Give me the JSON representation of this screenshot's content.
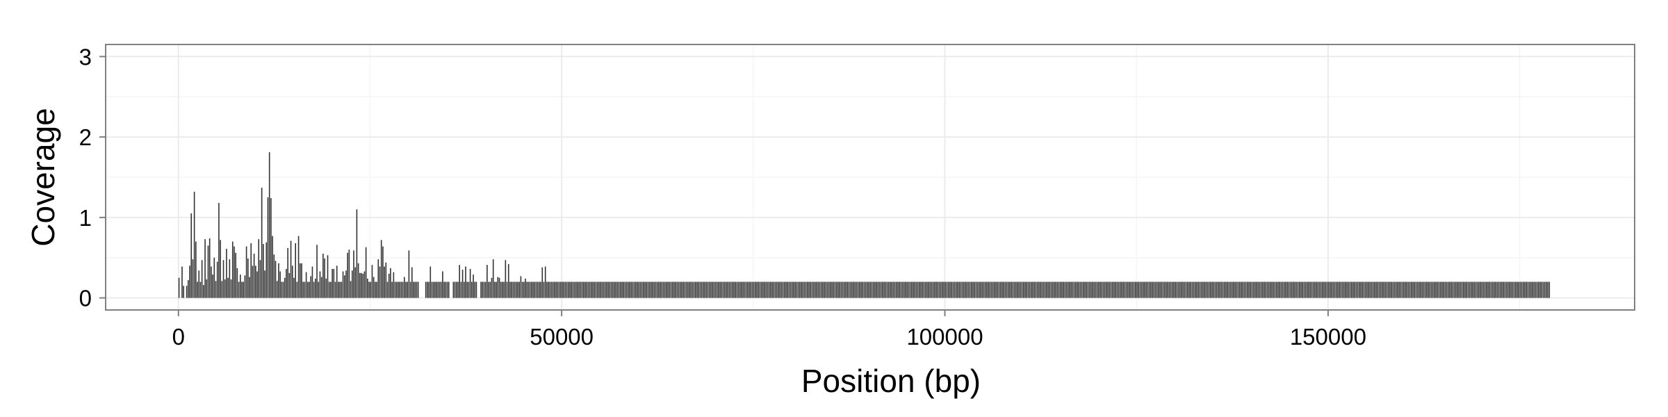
{
  "chart_data": {
    "type": "bar",
    "title": "",
    "xlabel": "Position (bp)",
    "ylabel": "Coverage",
    "xlim": [
      -9500,
      190000
    ],
    "ylim": [
      -0.15,
      3.15
    ],
    "x_ticks": [
      0,
      50000,
      100000,
      150000
    ],
    "x_tick_labels": [
      "0",
      "50000",
      "100000",
      "150000"
    ],
    "y_ticks": [
      0,
      1,
      2,
      3
    ],
    "y_tick_labels": [
      "0",
      "1",
      "2",
      "3"
    ],
    "grid": true,
    "legend": "none",
    "bar_color": "#333333",
    "panel_border_color": "#7f7f7f",
    "grid_color": "#ebebeb",
    "bin_width_bp": 200,
    "series": [
      {
        "bin_start_bp": 0,
        "values": [
          0.25,
          0,
          0.39,
          0.15,
          0,
          0.15,
          0.22,
          0.4,
          1.05,
          0.48,
          1.32,
          0.7,
          0.2,
          0.34,
          0.2,
          0.47,
          0.16,
          0.73,
          0.23,
          0.65,
          0.74,
          0.39,
          0.29,
          0.5,
          0.21,
          0.45,
          1.18,
          0.72,
          0.21,
          0.47,
          0.23,
          0.61,
          0.25,
          0.48,
          0.23,
          0.7,
          0.64,
          0.56,
          0.37,
          0.2,
          0.29,
          0.2,
          0.2,
          0.28,
          0.64,
          0.49,
          0.26,
          0.68,
          0.4,
          0.55,
          0.4,
          0.33,
          0.73,
          0.47,
          1.37,
          0.67,
          0.34,
          0.69,
          1.25,
          1.81,
          1.24,
          0.77,
          0.54,
          0.46,
          0.21,
          0.43,
          0.33,
          0.2,
          0.2,
          0.25,
          0.36,
          0.62,
          0.31,
          0.71,
          0.4,
          0.25,
          0.68,
          0.2,
          0.77,
          0.43,
          0.43,
          0.2,
          0.2,
          0.32,
          0.2,
          0.2,
          0.27,
          0.39,
          0.2,
          0.24,
          0.66,
          0.2,
          0.33,
          0.26,
          0.55,
          0.49,
          0.24,
          0.53,
          0.2,
          0.2,
          0.36,
          0.36,
          0.2,
          0.4,
          0.2,
          0.2,
          0.2,
          0.33,
          0.28,
          0.34,
          0.56,
          0.6,
          0.21,
          0.34,
          0.59,
          0.38,
          1.1,
          0.43,
          0.31,
          0.31,
          0.3,
          0.33,
          0.63,
          0.24,
          0.2,
          0.2,
          0.41,
          0.26,
          0.2,
          0.2,
          0.48,
          0.39,
          0.72,
          0.64,
          0.39,
          0.44,
          0.2,
          0.3,
          0.37,
          0.2,
          0.32,
          0.2,
          0.2,
          0.2,
          0.2,
          0.2,
          0.2,
          0.26,
          0.2,
          0.2,
          0.59,
          0.2,
          0.38,
          0.2,
          0.2,
          0.2,
          0.2,
          0,
          0,
          0,
          0,
          0.2,
          0.2,
          0.2,
          0.39,
          0.2,
          0.2,
          0.2,
          0.2,
          0.2,
          0.2,
          0.2,
          0.33,
          0.2,
          0.2,
          0.2,
          0.2,
          0,
          0,
          0.2,
          0.2,
          0.2,
          0.2,
          0.41,
          0.2,
          0.35,
          0.2,
          0.39,
          0.2,
          0.2,
          0.36,
          0.2,
          0.29,
          0.2,
          0.2,
          0,
          0,
          0.2,
          0.2,
          0.2,
          0.2,
          0.41,
          0.2,
          0.2,
          0.25,
          0.48,
          0.2,
          0.2,
          0.26,
          0.25,
          0.2,
          0.2,
          0.2,
          0.47,
          0.2,
          0.42,
          0.2,
          0.2,
          0.2,
          0.2,
          0.2,
          0.2,
          0.2,
          0.27,
          0.2,
          0.2,
          0.24,
          0.2,
          0.2,
          0.2,
          0.2,
          0.2,
          0.2,
          0.2,
          0.2,
          0.2,
          0.2,
          0.38,
          0.2,
          0.39,
          0.2,
          0.2,
          0.2,
          0.2,
          0.2,
          0.2,
          0.2,
          0.2,
          0.2,
          0.2,
          0.2,
          0.2,
          0.2,
          0.2,
          0.2,
          0.2,
          0.2,
          0.2,
          0.2,
          0.2,
          0.2,
          0.2,
          0.2,
          0.2,
          0.2,
          0.2,
          0.2,
          0.2,
          0.2,
          0.2,
          0.2,
          0.2,
          0.2,
          0.2,
          0.2,
          0.2,
          0.2,
          0.2,
          0.2,
          0.2,
          0.2,
          0.2,
          0.2,
          0.2,
          0.2,
          0.2,
          0.2,
          0.2,
          0.2,
          0.2,
          0.2,
          0.2,
          0.2,
          0.2,
          0.2,
          0.2,
          0.2,
          0.2,
          0.2,
          0.2,
          0.2,
          0.2,
          0.2,
          0.2,
          0.2,
          0.2,
          0.2,
          0.2,
          0.2,
          0.2,
          0.2,
          0.2,
          0.2,
          0.2,
          0.2,
          0.2,
          0.2,
          0.2,
          0.2,
          0.2,
          0.2,
          0.2,
          0.2,
          0.2,
          0.2,
          0.2,
          0.2,
          0.2,
          0.2,
          0.2,
          0.2,
          0.2,
          0.2,
          0.2,
          0.2,
          0.2,
          0.2,
          0.2,
          0.2,
          0.2,
          0.2,
          0.2,
          0.2,
          0.2,
          0.2,
          0.2,
          0.2,
          0.2,
          0.2,
          0.2,
          0.2,
          0.2,
          0.2,
          0.2,
          0.2,
          0.2,
          0.2,
          0.2,
          0.2,
          0.2,
          0.2,
          0.2,
          0.2,
          0.2,
          0.2,
          0.2,
          0.2,
          0.2,
          0.2,
          0.2,
          0.2,
          0.2,
          0.2,
          0.2,
          0.2,
          0.2,
          0.2,
          0.2,
          0.2,
          0.2,
          0.2,
          0.2,
          0.2,
          0.2,
          0.2,
          0.2,
          0.2,
          0.2,
          0.2,
          0.2,
          0.2,
          0.2,
          0.2,
          0.2,
          0.2,
          0.2,
          0.2,
          0.2,
          0.2,
          0.2,
          0.2,
          0.2,
          0.2,
          0.2,
          0.2,
          0.2,
          0.2,
          0.2,
          0.2,
          0.2,
          0.2,
          0.2,
          0.2,
          0.2,
          0.2,
          0.2,
          0.2,
          0.2,
          0.2,
          0.2,
          0.2,
          0.2,
          0.2,
          0.2,
          0.2,
          0.2,
          0.2,
          0.2,
          0.2,
          0.2,
          0.2,
          0.2,
          0.2,
          0.2,
          0.2,
          0.2,
          0.2,
          0.2,
          0.2,
          0.2,
          0.2,
          0.2,
          0.2,
          0.2,
          0.2,
          0.2,
          0.2,
          0.2,
          0.2,
          0.2,
          0.2,
          0.2,
          0.2,
          0.2,
          0.2,
          0.2,
          0.2,
          0.2,
          0.2,
          0.2,
          0.2,
          0.2,
          0.2,
          0.2,
          0.2,
          0.2,
          0.2,
          0.2,
          0.2,
          0.2,
          0.2,
          0.2,
          0.2,
          0.2,
          0.2,
          0.2,
          0.2,
          0.2,
          0.2,
          0.2,
          0.2,
          0.2,
          0.2,
          0.2,
          0.2,
          0.2,
          0.2,
          0.2,
          0.2,
          0.2,
          0.2,
          0.2,
          0.2,
          0.2,
          0.2,
          0.2,
          0.2,
          0.2,
          0.2,
          0.2,
          0.2,
          0.2,
          0.2,
          0.2,
          0.2,
          0.2,
          0.2,
          0.2,
          0.2,
          0.2,
          0.2,
          0.2,
          0.2,
          0.2,
          0.2,
          0.2,
          0.2,
          0.2,
          0.2,
          0.2,
          0.2,
          0.2,
          0.2,
          0.2,
          0.2,
          0.2,
          0.2,
          0.2,
          0.2,
          0.2,
          0.2,
          0.2,
          0.2,
          0.2,
          0.2,
          0.2,
          0.2,
          0.2,
          0.2,
          0.2,
          0.2,
          0.2,
          0.2,
          0.2,
          0.2,
          0.2,
          0.2,
          0.2,
          0.2,
          0.2,
          0.2,
          0.2,
          0.2,
          0.2,
          0.2,
          0.2,
          0.2,
          0.2,
          0.2,
          0.2,
          0.2,
          0.2,
          0.2,
          0.2,
          0.2,
          0.2,
          0.2,
          0.2,
          0.2,
          0.2,
          0.2,
          0.2,
          0.2,
          0.2,
          0.2,
          0.2,
          0.2,
          0.2,
          0.2,
          0.2,
          0.2,
          0.2,
          0.2,
          0.2,
          0.2,
          0.2,
          0.2,
          0.2,
          0.2,
          0.2,
          0.2,
          0.2,
          0.2,
          0.2,
          0.2,
          0.2,
          0.2,
          0.2,
          0.2,
          0.2,
          0.2,
          0.2,
          0.2,
          0.2,
          0.2,
          0.2,
          0.2,
          0.2,
          0.2,
          0.2,
          0.2,
          0.2,
          0.2,
          0.2,
          0.2,
          0.2,
          0.2,
          0.2,
          0.2,
          0.2,
          0.2,
          0.2,
          0.2,
          0.2,
          0.2,
          0.2,
          0.2,
          0.2,
          0.2,
          0.2,
          0.2,
          0.2,
          0.2,
          0.2,
          0.2,
          0.2,
          0.2,
          0.2,
          0.2,
          0.2,
          0.2,
          0.2,
          0.2,
          0.2,
          0.2,
          0.2,
          0.2,
          0.2,
          0.2,
          0.2,
          0.2,
          0.2,
          0.2,
          0.2,
          0.2,
          0.2,
          0.2,
          0.2,
          0.2,
          0.2,
          0.2,
          0.2,
          0.2,
          0.2,
          0.2,
          0.2,
          0.2,
          0.2,
          0.2,
          0.2,
          0.2,
          0.2,
          0.2,
          0.2,
          0.2,
          0.2,
          0.2,
          0.2,
          0.2,
          0.2,
          0.2,
          0.2,
          0.2,
          0.2,
          0.2,
          0.2,
          0.2,
          0.2,
          0.2,
          0.2,
          0.2,
          0.2,
          0.2,
          0.2,
          0.2,
          0.2,
          0.2,
          0.2,
          0.2,
          0.2,
          0.2,
          0.2,
          0.2,
          0.2,
          0.2,
          0.2,
          0.2,
          0.2,
          0.2,
          0.2,
          0.2,
          0.2,
          0.2,
          0.2,
          0.2,
          0.2,
          0.2,
          0.2,
          0.2,
          0.2,
          0.2,
          0.2,
          0.2,
          0.2,
          0.2,
          0.2,
          0.2,
          0.2,
          0.2,
          0.2,
          0.2,
          0.2,
          0.2,
          0.2,
          0.2,
          0.2,
          0.2,
          0.2,
          0.2,
          0.2,
          0.2,
          0.2,
          0.2,
          0.2,
          0.2,
          0.2,
          0.2,
          0.2,
          0.2,
          0.2,
          0.2,
          0.2,
          0.2,
          0.2,
          0.2,
          0.2,
          0.2,
          0.2,
          0.2,
          0.2,
          0.2,
          0.2,
          0.2,
          0.2,
          0.2,
          0.2,
          0.2,
          0.2,
          0.2,
          0.2,
          0.2,
          0.2,
          0.2,
          0.2,
          0.2,
          0.2,
          0.2,
          0.2,
          0.2,
          0.2,
          0.2,
          0.2,
          0.2,
          0.2,
          0.2,
          0.2,
          0.2,
          0.2,
          0.2,
          0.2,
          0.2,
          0.2,
          0.2,
          0.2,
          0.2,
          0.2,
          0.2,
          0.2,
          0.2,
          0.2,
          0.2,
          0.2,
          0.2,
          0.2,
          0.2,
          0.2,
          0.2,
          0.2,
          0.2,
          0.2,
          0.2,
          0.2,
          0.2,
          0.2,
          0.2,
          0.2,
          0.2,
          0.2,
          0.2,
          0.2,
          0.2,
          0.2,
          0.2,
          0.2,
          0.2,
          0.2,
          0.2,
          0.2,
          0.2,
          0.2,
          0.2,
          0.2,
          0.2,
          0.2,
          0.2,
          0.2,
          0.2,
          0.2,
          0.2,
          0.2,
          0.2,
          0.2,
          0.2,
          0.2,
          0.2,
          0.2,
          0.2,
          0.2,
          0.2,
          0.2,
          0.2,
          0.2,
          0.2,
          0.2,
          0.2,
          0.2,
          0.2,
          0.2,
          0.2,
          0.2,
          0.2,
          0.2,
          0.2,
          0.2,
          0.2,
          0.2,
          0.2,
          0.2,
          0.2,
          0.2,
          0.2,
          0.2,
          0.2,
          0.2,
          0.2,
          0.2,
          0.2,
          0.2,
          0.2,
          0.2,
          0.2,
          0.2,
          0.2,
          0.2,
          0.2,
          0.2,
          0.2,
          0.2,
          0.2,
          0.2,
          0.2,
          0.2,
          0.2,
          0.2,
          0.2
        ]
      }
    ]
  }
}
